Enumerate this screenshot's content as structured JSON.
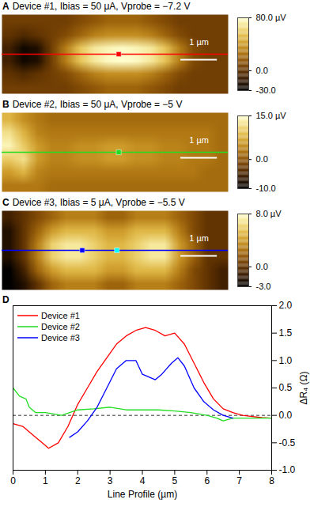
{
  "chart_data": [
    {
      "type": "heatmap",
      "label": "A",
      "title": "Device #1, Ibias = 50 μA, Vprobe = −7.2 V",
      "xlim": [
        0,
        6.2
      ],
      "ylim": [
        0,
        2.2
      ],
      "tick_labels": false,
      "values": [
        [
          5,
          5,
          5,
          5,
          5,
          10,
          15,
          20,
          20,
          20,
          15,
          10,
          5,
          5,
          5,
          5
        ],
        [
          0,
          -5,
          0,
          5,
          10,
          20,
          30,
          35,
          35,
          35,
          30,
          20,
          10,
          5,
          5,
          5
        ],
        [
          -10,
          -25,
          -20,
          5,
          30,
          55,
          70,
          75,
          78,
          75,
          70,
          55,
          30,
          10,
          5,
          5
        ],
        [
          -10,
          -25,
          -20,
          5,
          30,
          55,
          70,
          78,
          80,
          78,
          70,
          55,
          30,
          10,
          5,
          5
        ],
        [
          0,
          -5,
          0,
          5,
          10,
          20,
          30,
          35,
          35,
          35,
          30,
          20,
          10,
          5,
          5,
          5
        ],
        [
          5,
          5,
          5,
          5,
          5,
          10,
          15,
          20,
          20,
          20,
          15,
          10,
          5,
          5,
          5,
          5
        ]
      ],
      "colorbar": {
        "range": [
          -30,
          80
        ],
        "ticks": [
          {
            "value": 80,
            "label": "80.0 µV"
          },
          {
            "value": 0,
            "label": "0.0"
          },
          {
            "value": -30,
            "label": "-30.0"
          }
        ]
      },
      "profile": {
        "color": "#ff0000",
        "marker": "square",
        "markers": [
          {
            "x": 3.2,
            "color": "#ff0000"
          }
        ]
      },
      "scale_bar": {
        "length": 1,
        "label": "1 µm"
      }
    },
    {
      "type": "heatmap",
      "label": "B",
      "title": "Device #2, Ibias = 50 μA, Vprobe = −5 V",
      "xlim": [
        0,
        6.2
      ],
      "ylim": [
        0,
        2.2
      ],
      "tick_labels": false,
      "values": [
        [
          8,
          5,
          3,
          2,
          2,
          2,
          2,
          2,
          2,
          2,
          2,
          2,
          2,
          2,
          2,
          2
        ],
        [
          12,
          8,
          4,
          3,
          3,
          3,
          3,
          3,
          3,
          3,
          3,
          3,
          3,
          3,
          3,
          2
        ],
        [
          14,
          10,
          6,
          4,
          4,
          5,
          5,
          6,
          6,
          5,
          5,
          4,
          4,
          3,
          3,
          2
        ],
        [
          10,
          12,
          6,
          4,
          4,
          5,
          5,
          6,
          6,
          5,
          5,
          4,
          4,
          3,
          3,
          2
        ],
        [
          6,
          8,
          4,
          3,
          3,
          3,
          3,
          3,
          3,
          3,
          3,
          3,
          3,
          3,
          2,
          2
        ],
        [
          3,
          3,
          3,
          2,
          2,
          2,
          2,
          2,
          2,
          2,
          2,
          2,
          2,
          2,
          2,
          2
        ]
      ],
      "colorbar": {
        "range": [
          -10,
          15
        ],
        "ticks": [
          {
            "value": 15,
            "label": "15.0 µV"
          },
          {
            "value": 0,
            "label": "0.0"
          },
          {
            "value": -10,
            "label": "-10.0"
          }
        ]
      },
      "profile": {
        "color": "#22dd22",
        "marker": "square",
        "markers": [
          {
            "x": 3.2,
            "color": "#22dd22"
          }
        ]
      },
      "scale_bar": {
        "length": 1,
        "label": "1 µm"
      }
    },
    {
      "type": "heatmap",
      "label": "C",
      "title": "Device #3, Ibias = 5 μA, Vprobe = −5.5 V",
      "xlim": [
        0,
        6.2
      ],
      "ylim": [
        0,
        2.2
      ],
      "tick_labels": false,
      "values": [
        [
          -1,
          0,
          1,
          2,
          3,
          3,
          3,
          2,
          2,
          3,
          3,
          3,
          2,
          1,
          0,
          0
        ],
        [
          -2,
          0,
          2,
          4,
          5,
          5,
          5,
          4,
          4,
          5,
          5,
          5,
          3,
          1,
          0,
          0
        ],
        [
          -2,
          0,
          3,
          6,
          7,
          7,
          6,
          5,
          5,
          6,
          7,
          7,
          4,
          2,
          0,
          0
        ],
        [
          -2,
          0,
          3,
          6,
          7,
          7,
          6,
          5,
          5,
          6,
          7,
          7,
          4,
          2,
          0,
          0
        ],
        [
          -3,
          -1,
          2,
          4,
          5,
          5,
          5,
          4,
          4,
          5,
          5,
          5,
          3,
          1,
          0,
          -1
        ],
        [
          -3,
          -2,
          0,
          2,
          3,
          3,
          3,
          2,
          2,
          3,
          3,
          3,
          2,
          1,
          0,
          -1
        ]
      ],
      "colorbar": {
        "range": [
          -3,
          8
        ],
        "ticks": [
          {
            "value": 8,
            "label": "8.0 µV"
          },
          {
            "value": 0,
            "label": "0.0"
          },
          {
            "value": -3,
            "label": "-3.0"
          }
        ]
      },
      "profile": {
        "color": "#0000ff",
        "marker": "square",
        "markers": [
          {
            "x": 2.2,
            "color": "#0000ff"
          },
          {
            "x": 3.15,
            "color": "#00ffff"
          }
        ]
      },
      "scale_bar": {
        "length": 1,
        "label": "1 µm"
      }
    },
    {
      "type": "line",
      "label": "D",
      "xlabel": "Line Profile (µm)",
      "ylabel": "ΔR₄ (Ω)",
      "xlim": [
        0,
        8
      ],
      "xticks": [
        0,
        1,
        2,
        3,
        4,
        5,
        6,
        7,
        8
      ],
      "ylim": [
        -1,
        2
      ],
      "yticks": [
        {
          "value": -1,
          "label": "-1.0"
        },
        {
          "value": -0.5,
          "label": "-0.5"
        },
        {
          "value": 0,
          "label": "0.0"
        },
        {
          "value": 0.5,
          "label": "0.5"
        },
        {
          "value": 1,
          "label": "1.0"
        },
        {
          "value": 1.5,
          "label": "1.5"
        },
        {
          "value": 2,
          "label": "2.0"
        }
      ],
      "baseline": 0,
      "legend": "upper left",
      "series": [
        {
          "name": "Device #1",
          "color": "#ff0000",
          "x": [
            0,
            0.3,
            0.6,
            0.9,
            1.1,
            1.4,
            1.7,
            2.0,
            2.3,
            2.6,
            2.9,
            3.2,
            3.5,
            3.8,
            4.1,
            4.4,
            4.7,
            5.0,
            5.3,
            5.6,
            5.9,
            6.2,
            6.5,
            6.8,
            7.1,
            7.4,
            7.7,
            8.0
          ],
          "values": [
            -0.15,
            -0.2,
            -0.35,
            -0.5,
            -0.6,
            -0.5,
            -0.2,
            0.2,
            0.5,
            0.8,
            1.05,
            1.3,
            1.45,
            1.55,
            1.6,
            1.55,
            1.45,
            1.5,
            1.3,
            0.95,
            0.6,
            0.3,
            0.12,
            0.05,
            0.0,
            -0.02,
            -0.04,
            -0.05
          ]
        },
        {
          "name": "Device #2",
          "color": "#22dd22",
          "x": [
            0,
            0.2,
            0.4,
            0.5,
            0.7,
            1.0,
            1.5,
            2.0,
            2.5,
            3.0,
            3.5,
            4.0,
            4.5,
            5.0,
            5.5,
            6.0,
            6.3,
            6.5,
            6.8,
            7.2,
            7.6,
            8.0
          ],
          "values": [
            0.5,
            0.35,
            0.3,
            0.15,
            0.05,
            0.05,
            0.0,
            0.1,
            0.12,
            0.15,
            0.1,
            0.1,
            0.1,
            0.08,
            0.05,
            0.0,
            -0.05,
            -0.1,
            -0.05,
            -0.05,
            -0.05,
            -0.05
          ]
        },
        {
          "name": "Device #3",
          "color": "#0000ff",
          "x": [
            1.75,
            2.0,
            2.3,
            2.6,
            2.9,
            3.2,
            3.5,
            3.8,
            4.0,
            4.2,
            4.4,
            4.6,
            4.9,
            5.1,
            5.3,
            5.6,
            5.9,
            6.2,
            6.5,
            6.8
          ],
          "values": [
            -0.4,
            -0.3,
            -0.1,
            0.15,
            0.5,
            0.85,
            1.0,
            1.0,
            0.75,
            0.7,
            0.65,
            0.75,
            0.95,
            1.05,
            0.9,
            0.5,
            0.25,
            0.1,
            0.0,
            -0.05
          ]
        }
      ]
    }
  ]
}
